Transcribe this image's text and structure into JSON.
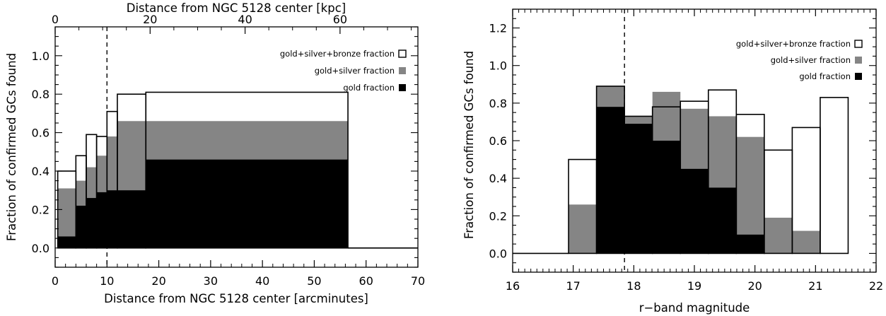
{
  "chart_data": [
    {
      "type": "step-histogram",
      "xlabel": "Distance from NGC 5128 center [arcminutes]",
      "x2label": "Distance from NGC 5128 center [kpc]",
      "ylabel": "Fraction of confirmed GCs found",
      "xlim": [
        0,
        70
      ],
      "ylim": [
        -0.1,
        1.15
      ],
      "x2lim": [
        0,
        76.4
      ],
      "xticks": [
        "0",
        "10",
        "20",
        "30",
        "40",
        "50",
        "60",
        "70"
      ],
      "x2ticks": [
        "0",
        "20",
        "40",
        "60"
      ],
      "x2tick_values": [
        0,
        20,
        40,
        60
      ],
      "yticks": [
        "0.0",
        "0.2",
        "0.4",
        "0.6",
        "0.8",
        "1.0"
      ],
      "ytick_values": [
        0,
        0.2,
        0.4,
        0.6,
        0.8,
        1.0
      ],
      "vline": 10,
      "bin_edges": [
        0.5,
        4,
        6,
        8,
        10,
        12,
        17.5,
        56.5
      ],
      "outline_after": [
        [
          56.5,
          70
        ]
      ],
      "series": [
        {
          "name": "gold+silver+bronze fraction",
          "style": "outline",
          "values": [
            0.4,
            0.48,
            0.59,
            0.58,
            0.71,
            0.8,
            0.81
          ]
        },
        {
          "name": "gold+silver fraction",
          "style": "gray",
          "values": [
            0.31,
            0.35,
            0.42,
            0.48,
            0.58,
            0.66,
            0.66
          ]
        },
        {
          "name": "gold fraction",
          "style": "black",
          "values": [
            0.06,
            0.22,
            0.26,
            0.29,
            0.3,
            0.3,
            0.46
          ]
        }
      ],
      "legend_placement": "top-right"
    },
    {
      "type": "step-histogram",
      "xlabel": "r−band magnitude",
      "ylabel": "Fraction of confirmed GCs found",
      "xlim": [
        16,
        22.5
      ],
      "ylim": [
        -0.1,
        1.3
      ],
      "xticks": [
        "16",
        "17",
        "18",
        "19",
        "20",
        "21",
        "22"
      ],
      "yticks": [
        "0.0",
        "0.2",
        "0.4",
        "0.6",
        "0.8",
        "1.0",
        "1.2"
      ],
      "ytick_values": [
        0,
        0.2,
        0.4,
        0.6,
        0.8,
        1.0,
        1.2
      ],
      "vline": 18,
      "bin_edges": [
        17,
        17.5,
        18,
        18.5,
        19,
        19.5,
        20,
        20.5,
        21,
        21.5,
        22
      ],
      "outline_before": [
        [
          16,
          17
        ]
      ],
      "series": [
        {
          "name": "gold+silver+bronze fraction",
          "style": "outline",
          "values": [
            0.5,
            0.89,
            0.73,
            0.78,
            0.81,
            0.87,
            0.74,
            0.55,
            0.67,
            0.83
          ]
        },
        {
          "name": "gold+silver fraction",
          "style": "gray",
          "values": [
            0.26,
            0.89,
            0.73,
            0.86,
            0.77,
            0.73,
            0.62,
            0.19,
            0.12,
            0
          ]
        },
        {
          "name": "gold fraction",
          "style": "black",
          "values": [
            0,
            0.78,
            0.69,
            0.6,
            0.45,
            0.35,
            0.1,
            0,
            0,
            0
          ]
        }
      ],
      "legend_placement": "top-right"
    }
  ]
}
